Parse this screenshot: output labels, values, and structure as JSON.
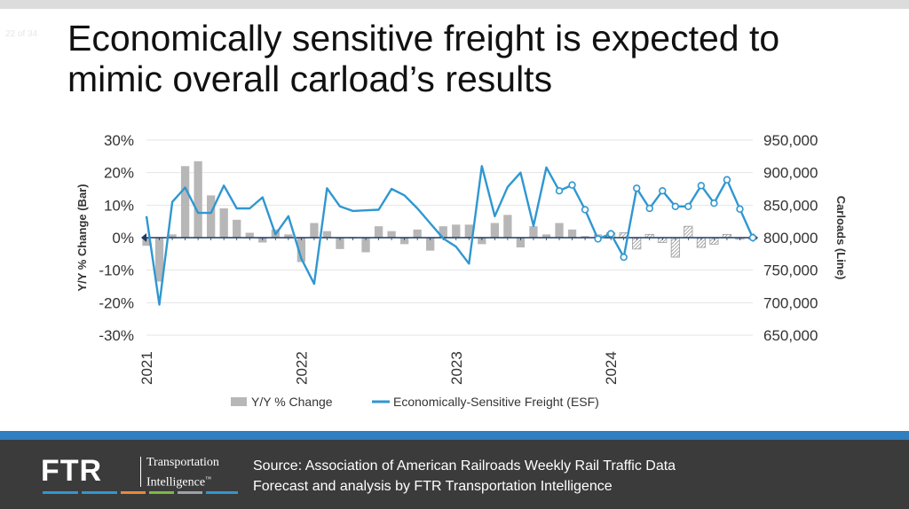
{
  "slide": {
    "counter": "22 of 34",
    "title": "Economically sensitive freight is expected to mimic overall carload’s results"
  },
  "colors": {
    "bar": "#b7b7b7",
    "line": "#2f97d1",
    "axis": "#1f3864",
    "footer_bg": "#3b3b3b",
    "footer_band": "#2f7fc1"
  },
  "chart_data": {
    "type": "bar+line",
    "title": "",
    "y_left": {
      "label": "Y/Y % Change (Bar)",
      "ticks": [
        "30%",
        "20%",
        "10%",
        "0%",
        "-10%",
        "-20%",
        "-30%"
      ],
      "range": [
        -30,
        30
      ]
    },
    "y_right": {
      "label": "Carloads (Line)",
      "ticks": [
        "950,000",
        "900,000",
        "850,000",
        "800,000",
        "750,000",
        "700,000",
        "650,000"
      ],
      "range": [
        650000,
        950000
      ]
    },
    "x_labels": [
      "2021",
      "2022",
      "2023",
      "2024"
    ],
    "legend": {
      "bar": "Y/Y % Change",
      "line": "Economically-Sensitive Freight (ESF)"
    },
    "months": 48,
    "forecast_start_index": 36,
    "series": [
      {
        "name": "Y/Y % Change",
        "values": [
          -2.5,
          -13.5,
          1,
          22,
          23.5,
          13,
          9,
          5.5,
          1.5,
          -1.5,
          2.5,
          1,
          -7.5,
          4.5,
          2,
          -3.5,
          0,
          -4.5,
          3.5,
          2,
          -2,
          2.5,
          -4,
          3.5,
          4,
          4,
          -2,
          4.5,
          7,
          -3,
          3.5,
          1,
          4.5,
          2.5,
          0.5,
          1,
          1.5,
          1.5,
          -3.5,
          1,
          -1.5,
          -6,
          3.5,
          -3,
          -2,
          1,
          -0.5,
          -0.5
        ]
      },
      {
        "name": "Economically-Sensitive Freight (ESF)",
        "values": [
          833000,
          697000,
          855000,
          877000,
          838000,
          838000,
          880000,
          845000,
          845000,
          862000,
          805000,
          833000,
          768000,
          729000,
          876000,
          848000,
          841000,
          842000,
          843000,
          875000,
          865000,
          845000,
          822000,
          799000,
          786000,
          760000,
          910000,
          833000,
          878000,
          900000,
          818000,
          908000,
          872000,
          881000,
          843000,
          798000,
          806000,
          770000,
          876000,
          845000,
          872000,
          848000,
          848000,
          880000,
          853000,
          889000,
          844000,
          800000
        ]
      }
    ]
  },
  "footer": {
    "logo_main": "FTR",
    "logo_line1": "Transportation",
    "logo_line2": "Intelligence",
    "logo_tm": "™",
    "source_line1": "Source: Association of American Railroads Weekly Rail Traffic Data",
    "source_line2": "Forecast and analysis by FTR Transportation Intelligence"
  }
}
